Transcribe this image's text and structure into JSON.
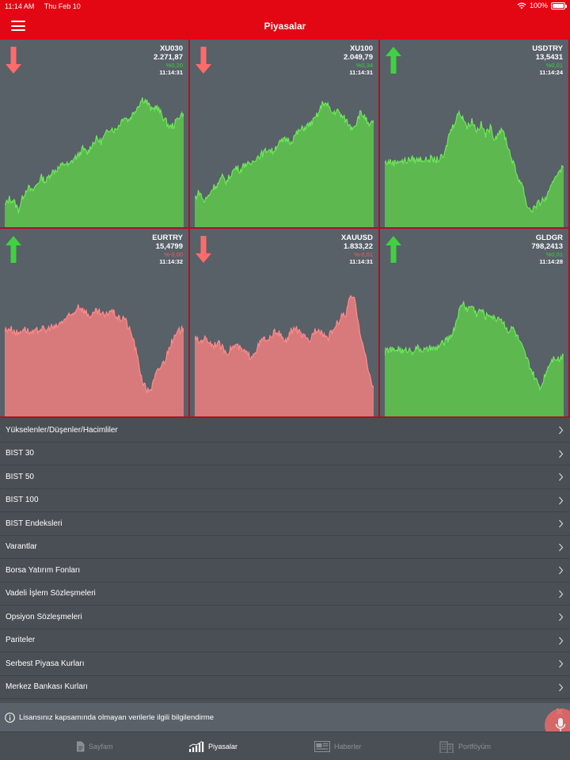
{
  "status_bar": {
    "time": "11:14 AM",
    "date": "Thu Feb 10",
    "battery": "100%"
  },
  "header": {
    "title": "Piyasalar"
  },
  "tiles": [
    {
      "symbol": "XU030",
      "value": "2.271,87",
      "change": "%0,20",
      "time": "11:14:31",
      "trend": "down",
      "chart_color": "green",
      "series": [
        0.15,
        0.2,
        0.18,
        0.12,
        0.22,
        0.28,
        0.25,
        0.3,
        0.35,
        0.32,
        0.38,
        0.4,
        0.42,
        0.45,
        0.43,
        0.48,
        0.5,
        0.55,
        0.52,
        0.58,
        0.62,
        0.6,
        0.65,
        0.7,
        0.68,
        0.72,
        0.78,
        0.75,
        0.8,
        0.85,
        0.9,
        0.88,
        0.82,
        0.85,
        0.8,
        0.75,
        0.7,
        0.72,
        0.78,
        0.8
      ]
    },
    {
      "symbol": "XU100",
      "value": "2.049,79",
      "change": "%0,34",
      "time": "11:14:31",
      "trend": "down",
      "chart_color": "green",
      "series": [
        0.2,
        0.25,
        0.18,
        0.22,
        0.28,
        0.3,
        0.35,
        0.32,
        0.38,
        0.42,
        0.4,
        0.45,
        0.43,
        0.48,
        0.5,
        0.52,
        0.55,
        0.53,
        0.58,
        0.6,
        0.62,
        0.6,
        0.65,
        0.68,
        0.7,
        0.72,
        0.75,
        0.8,
        0.88,
        0.85,
        0.8,
        0.82,
        0.78,
        0.75,
        0.7,
        0.72,
        0.8,
        0.78,
        0.7,
        0.75
      ]
    },
    {
      "symbol": "USDTRY",
      "value": "13,5431",
      "change": "%0,01",
      "time": "11:14:24",
      "trend": "up",
      "chart_color": "green",
      "series": [
        0.45,
        0.46,
        0.45,
        0.47,
        0.46,
        0.47,
        0.48,
        0.47,
        0.48,
        0.47,
        0.48,
        0.47,
        0.48,
        0.5,
        0.65,
        0.72,
        0.8,
        0.78,
        0.7,
        0.75,
        0.68,
        0.72,
        0.65,
        0.7,
        0.62,
        0.68,
        0.66,
        0.55,
        0.45,
        0.35,
        0.3,
        0.15,
        0.12,
        0.15,
        0.18,
        0.2,
        0.25,
        0.35,
        0.4,
        0.42
      ]
    },
    {
      "symbol": "EURTRY",
      "value": "15,4799",
      "change": "%-0,00",
      "time": "11:14:32",
      "trend": "up",
      "chart_color": "red",
      "series": [
        0.6,
        0.62,
        0.6,
        0.58,
        0.62,
        0.6,
        0.58,
        0.6,
        0.62,
        0.6,
        0.63,
        0.62,
        0.65,
        0.68,
        0.7,
        0.72,
        0.78,
        0.75,
        0.72,
        0.7,
        0.74,
        0.72,
        0.7,
        0.75,
        0.72,
        0.68,
        0.7,
        0.62,
        0.55,
        0.4,
        0.25,
        0.18,
        0.2,
        0.3,
        0.35,
        0.4,
        0.5,
        0.55,
        0.6,
        0.62
      ]
    },
    {
      "symbol": "XAUUSD",
      "value": "1.833,22",
      "change": "%-0,01",
      "time": "11:14:31",
      "trend": "down",
      "chart_color": "red",
      "series": [
        0.55,
        0.52,
        0.55,
        0.53,
        0.5,
        0.52,
        0.48,
        0.45,
        0.48,
        0.5,
        0.47,
        0.45,
        0.42,
        0.45,
        0.5,
        0.55,
        0.52,
        0.58,
        0.6,
        0.55,
        0.52,
        0.6,
        0.62,
        0.58,
        0.55,
        0.52,
        0.6,
        0.62,
        0.58,
        0.55,
        0.6,
        0.65,
        0.7,
        0.72,
        0.85,
        0.8,
        0.6,
        0.45,
        0.3,
        0.2
      ]
    },
    {
      "symbol": "GLDGR",
      "value": "798,2413",
      "change": "%0,01",
      "time": "11:14:28",
      "trend": "up",
      "chart_color": "green",
      "series": [
        0.45,
        0.47,
        0.46,
        0.48,
        0.45,
        0.47,
        0.46,
        0.48,
        0.47,
        0.46,
        0.48,
        0.47,
        0.5,
        0.52,
        0.55,
        0.6,
        0.72,
        0.8,
        0.75,
        0.78,
        0.72,
        0.75,
        0.7,
        0.72,
        0.68,
        0.7,
        0.65,
        0.6,
        0.62,
        0.55,
        0.48,
        0.4,
        0.32,
        0.25,
        0.2,
        0.3,
        0.38,
        0.42,
        0.4,
        0.43
      ]
    }
  ],
  "menu": [
    {
      "label": "Yükselenler/Düşenler/Hacimliler"
    },
    {
      "label": "BIST 30"
    },
    {
      "label": "BIST 50"
    },
    {
      "label": "BIST 100"
    },
    {
      "label": "BIST Endeksleri"
    },
    {
      "label": "Varantlar"
    },
    {
      "label": "Borsa Yatırım Fonları"
    },
    {
      "label": "Vadeli İşlem Sözleşmeleri"
    },
    {
      "label": "Opsiyon Sözleşmeleri"
    },
    {
      "label": "Pariteler"
    },
    {
      "label": "Serbest Piyasa Kurları"
    },
    {
      "label": "Merkez Bankası Kurları"
    }
  ],
  "notice": {
    "text": "Lisansınız kapsamında olmayan verilerle ilgili bilgilendirme"
  },
  "tabs": [
    {
      "label": "Sayfam",
      "active": false
    },
    {
      "label": "Piyasalar",
      "active": true
    },
    {
      "label": "Haberler",
      "active": false
    },
    {
      "label": "Portföyüm",
      "active": false
    }
  ],
  "colors": {
    "brand_red": "#e30613",
    "chart_green": "#5cb84f",
    "chart_green_line": "#6ee85a",
    "chart_red": "#d87a7c",
    "chart_red_line": "#ff8a8a",
    "up_arrow": "#3fd23f",
    "down_arrow": "#ff6b6b"
  }
}
